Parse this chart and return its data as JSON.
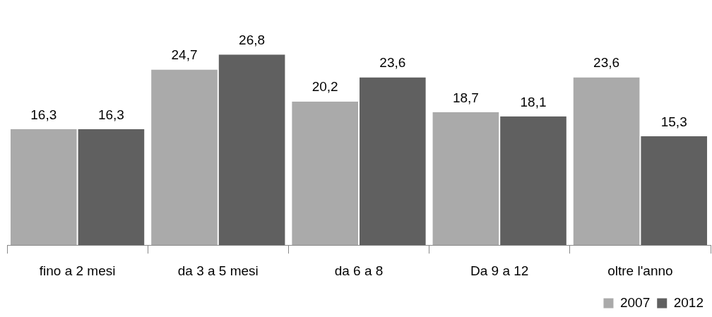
{
  "chart_data": {
    "type": "bar",
    "categories": [
      "fino a 2 mesi",
      "da 3 a 5 mesi",
      "da 6 a 8",
      "Da 9 a 12",
      "oltre l'anno"
    ],
    "series": [
      {
        "name": "2007",
        "color": "#aaaaaa",
        "values": [
          16.3,
          24.7,
          20.2,
          18.7,
          23.6
        ],
        "value_labels": [
          "16,3",
          "24,7",
          "20,2",
          "18,7",
          "23,6"
        ]
      },
      {
        "name": "2012",
        "color": "#606060",
        "values": [
          16.3,
          26.8,
          23.6,
          18.1,
          15.3
        ],
        "value_labels": [
          "16,3",
          "26,8",
          "23,6",
          "18,1",
          "15,3"
        ]
      }
    ],
    "legend": "bottom right",
    "grid": false
  }
}
